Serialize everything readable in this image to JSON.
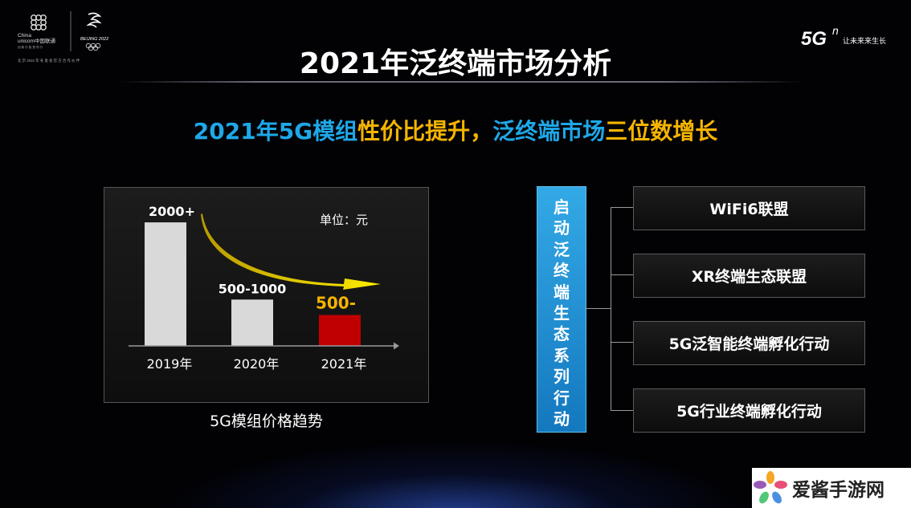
{
  "title": "2021年泛终端市场分析",
  "subtitle": {
    "part1": "2021年5G模组",
    "part2": "性价比提升",
    "part3": "，",
    "part4": "泛终端市场",
    "part5": "三位数增长"
  },
  "logos": {
    "unicom_line1": "China",
    "unicom_line2": "unicom中国联通",
    "unicom_tagline": "创 新 与 智 慧 同 行",
    "olympic": "BEIJING 2022",
    "partner_line": "北 京 2022 年 冬 奥 会 官 方 合 作 伙 伴",
    "fiveg": "5G",
    "fiveg_sup": "n",
    "fiveg_slogan": "让未来来生长"
  },
  "chart_data": {
    "type": "bar",
    "categories": [
      "2019年",
      "2020年",
      "2021年"
    ],
    "values": [
      2000,
      750,
      500
    ],
    "value_labels": [
      "2000+",
      "500-1000",
      "500-"
    ],
    "unit_label": "单位：元",
    "caption": "5G模组价格趋势",
    "ylim": [
      0,
      2300
    ],
    "grid": false,
    "bar_colors": [
      "#d9d9d9",
      "#d9d9d9",
      "#c00000"
    ],
    "label_colors": [
      "#ffffff",
      "#ffffff",
      "#f5b400"
    ],
    "trend_arrow_colors": [
      "#b89a00",
      "#ffee00"
    ]
  },
  "center_box": {
    "chars": [
      "启",
      "动",
      "泛",
      "终",
      "端",
      "生",
      "态",
      "系",
      "列",
      "行",
      "动"
    ],
    "color": "#1e88d4"
  },
  "right_boxes": [
    {
      "label": "WiFi6联盟"
    },
    {
      "label": "XR终端生态联盟"
    },
    {
      "label": "5G泛智能终端孵化行动"
    },
    {
      "label": "5G行业终端孵化行动"
    }
  ],
  "watermark": {
    "text": "爱酱手游网"
  }
}
